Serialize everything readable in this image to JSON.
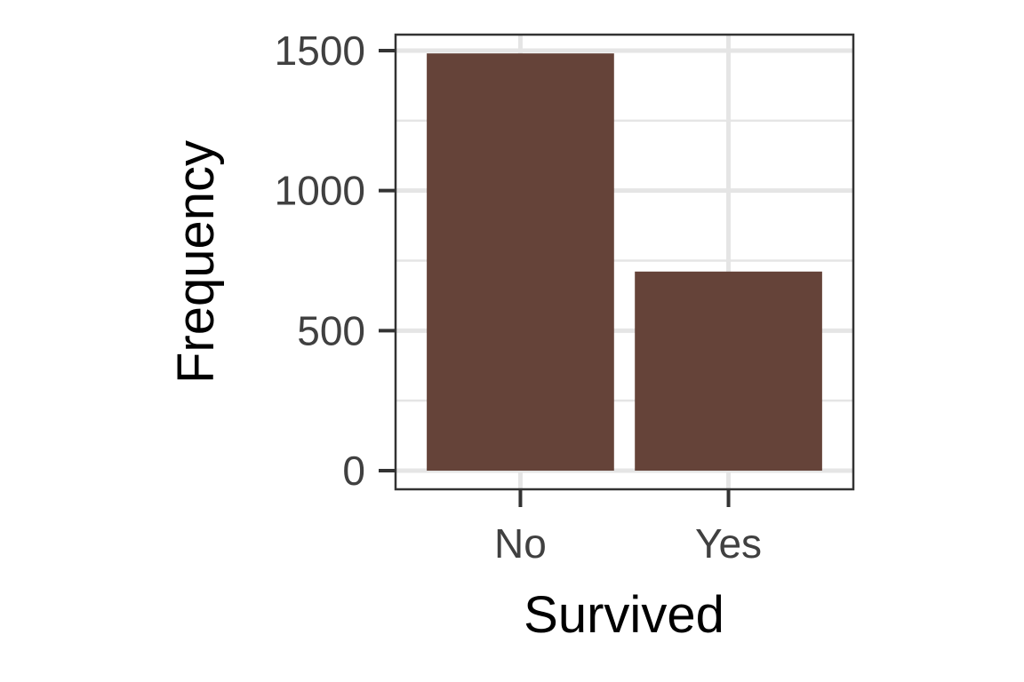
{
  "chart_data": {
    "type": "bar",
    "title": "",
    "xlabel": "Survived",
    "ylabel": "Frequency",
    "categories": [
      "No",
      "Yes"
    ],
    "values": [
      1490,
      711
    ],
    "ylim": [
      0,
      1565
    ],
    "yticks": [
      0,
      500,
      1000,
      1500
    ],
    "ytick_labels": [
      "0",
      "500",
      "1000",
      "1500"
    ],
    "minor_yticks": [
      250,
      750,
      1250
    ],
    "grid": true,
    "legend": "none",
    "bar_color": "#654339",
    "grid_color": "#e5e5e5",
    "panel_border_color": "#333333"
  }
}
